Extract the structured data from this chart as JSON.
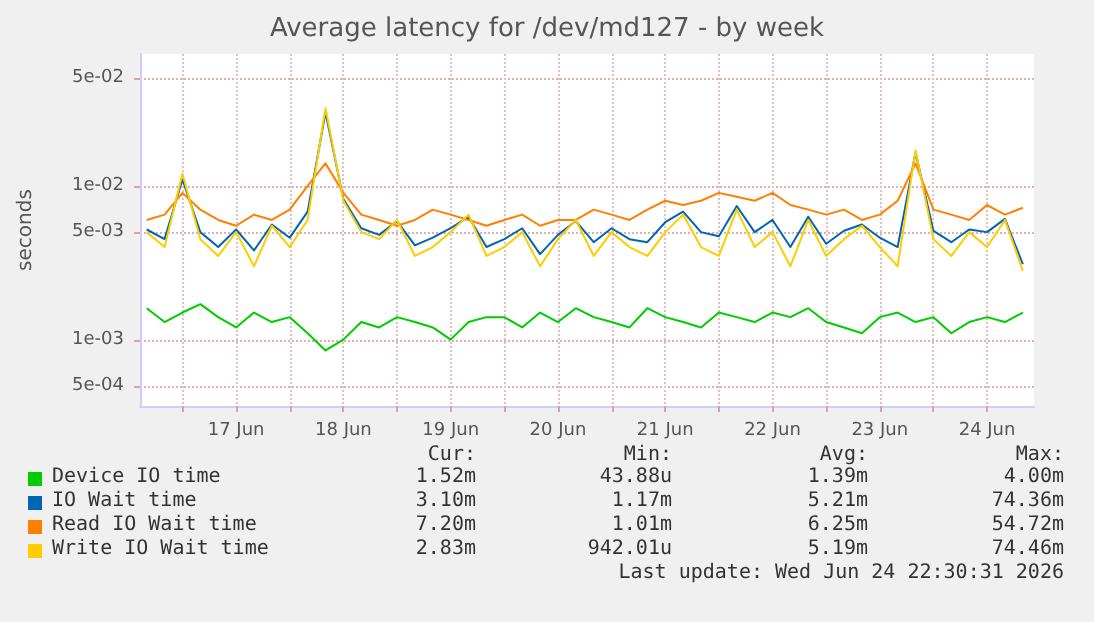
{
  "chart_data": {
    "type": "line",
    "title": "Average latency for /dev/md127 - by week",
    "ylabel": "seconds",
    "log": "y",
    "grid": true,
    "legend": "bottom",
    "x": [
      "2026-06-16T16:00",
      "2026-06-16T20:00",
      "2026-06-17T00:00",
      "2026-06-17T04:00",
      "2026-06-17T08:00",
      "2026-06-17T12:00",
      "2026-06-17T16:00",
      "2026-06-17T20:00",
      "2026-06-18T00:00",
      "2026-06-18T04:00",
      "2026-06-18T08:00",
      "2026-06-18T12:00",
      "2026-06-18T16:00",
      "2026-06-18T20:00",
      "2026-06-19T00:00",
      "2026-06-19T04:00",
      "2026-06-19T08:00",
      "2026-06-19T12:00",
      "2026-06-19T16:00",
      "2026-06-19T20:00",
      "2026-06-20T00:00",
      "2026-06-20T04:00",
      "2026-06-20T08:00",
      "2026-06-20T12:00",
      "2026-06-20T16:00",
      "2026-06-20T20:00",
      "2026-06-21T00:00",
      "2026-06-21T04:00",
      "2026-06-21T08:00",
      "2026-06-21T12:00",
      "2026-06-21T16:00",
      "2026-06-21T20:00",
      "2026-06-22T00:00",
      "2026-06-22T04:00",
      "2026-06-22T08:00",
      "2026-06-22T12:00",
      "2026-06-22T16:00",
      "2026-06-22T20:00",
      "2026-06-23T00:00",
      "2026-06-23T04:00",
      "2026-06-23T08:00",
      "2026-06-23T12:00",
      "2026-06-23T16:00",
      "2026-06-23T20:00",
      "2026-06-24T00:00",
      "2026-06-24T04:00",
      "2026-06-24T08:00",
      "2026-06-24T12:00",
      "2026-06-24T16:00",
      "2026-06-24T20:00"
    ],
    "xlim": [
      "2026-06-16T14:30",
      "2026-06-24T22:30"
    ],
    "xticks": [
      {
        "value": "2026-06-17T00:00",
        "label": null
      },
      {
        "value": "2026-06-17T12:00",
        "label": "17 Jun"
      },
      {
        "value": "2026-06-18T00:00",
        "label": null
      },
      {
        "value": "2026-06-18T12:00",
        "label": "18 Jun"
      },
      {
        "value": "2026-06-19T00:00",
        "label": null
      },
      {
        "value": "2026-06-19T12:00",
        "label": "19 Jun"
      },
      {
        "value": "2026-06-20T00:00",
        "label": null
      },
      {
        "value": "2026-06-20T12:00",
        "label": "20 Jun"
      },
      {
        "value": "2026-06-21T00:00",
        "label": null
      },
      {
        "value": "2026-06-21T12:00",
        "label": "21 Jun"
      },
      {
        "value": "2026-06-22T00:00",
        "label": null
      },
      {
        "value": "2026-06-22T12:00",
        "label": "22 Jun"
      },
      {
        "value": "2026-06-23T00:00",
        "label": null
      },
      {
        "value": "2026-06-23T12:00",
        "label": "23 Jun"
      },
      {
        "value": "2026-06-24T00:00",
        "label": null
      },
      {
        "value": "2026-06-24T12:00",
        "label": "24 Jun"
      }
    ],
    "ylim": [
      0.00037,
      0.072
    ],
    "yticks": [
      {
        "value": 0.0005,
        "label": "5e-04"
      },
      {
        "value": 0.001,
        "label": "1e-03"
      },
      {
        "value": 0.005,
        "label": "5e-03"
      },
      {
        "value": 0.01,
        "label": "1e-02"
      },
      {
        "value": 0.05,
        "label": "5e-02"
      }
    ],
    "series": [
      {
        "name": "Device IO time",
        "color": "#00cc00",
        "values": [
          0.0016,
          0.0013,
          0.0015,
          0.0017,
          0.0014,
          0.0012,
          0.0015,
          0.0013,
          0.0014,
          0.0011,
          0.00085,
          0.001,
          0.0013,
          0.0012,
          0.0014,
          0.0013,
          0.0012,
          0.001,
          0.0013,
          0.0014,
          0.0014,
          0.0012,
          0.0015,
          0.0013,
          0.0016,
          0.0014,
          0.0013,
          0.0012,
          0.0016,
          0.0014,
          0.0013,
          0.0012,
          0.0015,
          0.0014,
          0.0013,
          0.0015,
          0.0014,
          0.0016,
          0.0013,
          0.0012,
          0.0011,
          0.0014,
          0.0015,
          0.0013,
          0.0014,
          0.0011,
          0.0013,
          0.0014,
          0.0013,
          0.0015
        ]
      },
      {
        "name": "IO Wait time",
        "color": "#0066b3",
        "values": [
          0.0052,
          0.0045,
          0.011,
          0.005,
          0.004,
          0.0052,
          0.0038,
          0.0056,
          0.0046,
          0.0068,
          0.03,
          0.0082,
          0.0053,
          0.0048,
          0.0059,
          0.0041,
          0.0046,
          0.0053,
          0.0063,
          0.004,
          0.0045,
          0.0053,
          0.0036,
          0.0048,
          0.0059,
          0.0043,
          0.0053,
          0.0045,
          0.0043,
          0.0058,
          0.0068,
          0.005,
          0.0047,
          0.0074,
          0.005,
          0.006,
          0.004,
          0.0063,
          0.0042,
          0.0051,
          0.0056,
          0.0046,
          0.004,
          0.0165,
          0.0051,
          0.0043,
          0.0052,
          0.005,
          0.0061,
          0.0031
        ]
      },
      {
        "name": "Read IO Wait time",
        "color": "#ff8000",
        "values": [
          0.006,
          0.0065,
          0.009,
          0.007,
          0.006,
          0.0055,
          0.0065,
          0.006,
          0.007,
          0.01,
          0.014,
          0.009,
          0.0065,
          0.006,
          0.0055,
          0.006,
          0.007,
          0.0065,
          0.006,
          0.0055,
          0.006,
          0.0065,
          0.0055,
          0.006,
          0.006,
          0.007,
          0.0065,
          0.006,
          0.007,
          0.008,
          0.0075,
          0.008,
          0.009,
          0.0085,
          0.008,
          0.009,
          0.0075,
          0.007,
          0.0065,
          0.007,
          0.006,
          0.0065,
          0.008,
          0.014,
          0.007,
          0.0065,
          0.006,
          0.0075,
          0.0065,
          0.0072
        ]
      },
      {
        "name": "Write IO Wait time",
        "color": "#ffcc00",
        "values": [
          0.005,
          0.004,
          0.012,
          0.0045,
          0.0035,
          0.005,
          0.003,
          0.0055,
          0.004,
          0.006,
          0.032,
          0.008,
          0.005,
          0.0045,
          0.006,
          0.0035,
          0.004,
          0.005,
          0.0065,
          0.0035,
          0.004,
          0.005,
          0.003,
          0.0045,
          0.006,
          0.0035,
          0.005,
          0.004,
          0.0035,
          0.005,
          0.0065,
          0.004,
          0.0035,
          0.007,
          0.004,
          0.005,
          0.003,
          0.006,
          0.0035,
          0.0045,
          0.0055,
          0.004,
          0.003,
          0.017,
          0.0045,
          0.0035,
          0.005,
          0.004,
          0.006,
          0.0028
        ]
      }
    ],
    "annotations": [
      "Cur:",
      "Min:",
      "Avg:",
      "Max:",
      "1.52m",
      "43.88u",
      "1.39m",
      "4.00m",
      "3.10m",
      "1.17m",
      "5.21m",
      "74.36m",
      "7.20m",
      "1.01m",
      "6.25m",
      "54.72m",
      "2.83m",
      "942.01u",
      "5.19m",
      "74.46m",
      "Last update: Wed Jun 24 22:30:31 2026"
    ]
  }
}
